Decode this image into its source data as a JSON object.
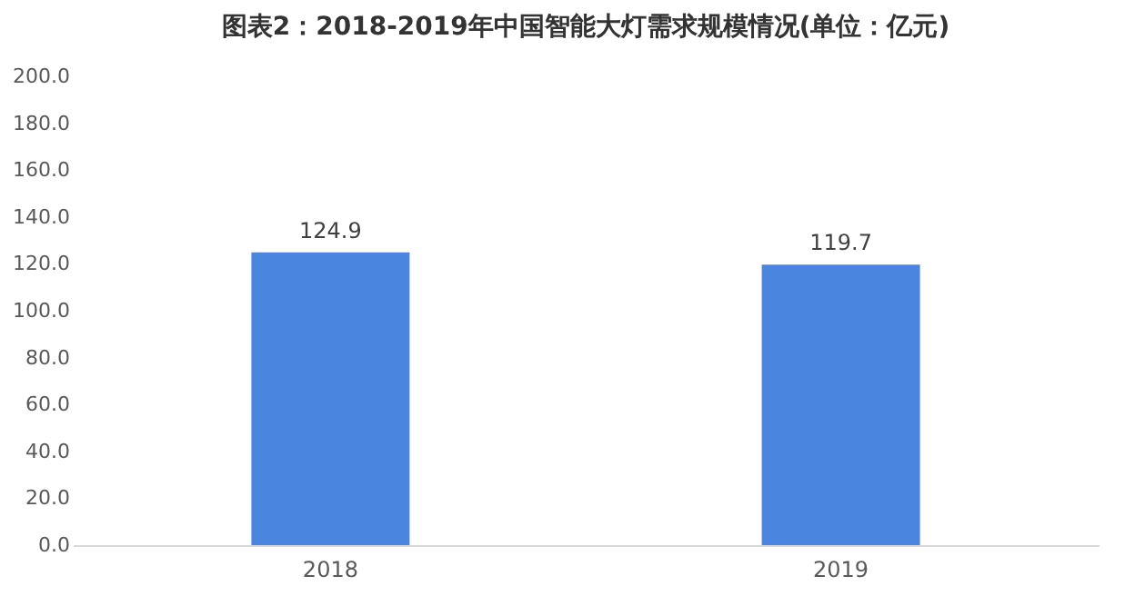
{
  "chart_data": {
    "type": "bar",
    "title": "图表2：2018-2019年中国智能大灯需求规模情况(单位：亿元)",
    "categories": [
      "2018",
      "2019"
    ],
    "values": [
      124.9,
      119.7
    ],
    "color": "#4a86e0",
    "data_labels": true,
    "ylim": [
      0,
      200
    ],
    "yticks": [
      {
        "value": 0,
        "label": "0.0"
      },
      {
        "value": 20,
        "label": "20.0"
      },
      {
        "value": 40,
        "label": "40.0"
      },
      {
        "value": 60,
        "label": "60.0"
      },
      {
        "value": 80,
        "label": "80.0"
      },
      {
        "value": 100,
        "label": "100.0"
      },
      {
        "value": 120,
        "label": "120.0"
      },
      {
        "value": 140,
        "label": "140.0"
      },
      {
        "value": 160,
        "label": "160.0"
      },
      {
        "value": 180,
        "label": "180.0"
      },
      {
        "value": 200,
        "label": "200.0"
      }
    ],
    "grid": false
  }
}
